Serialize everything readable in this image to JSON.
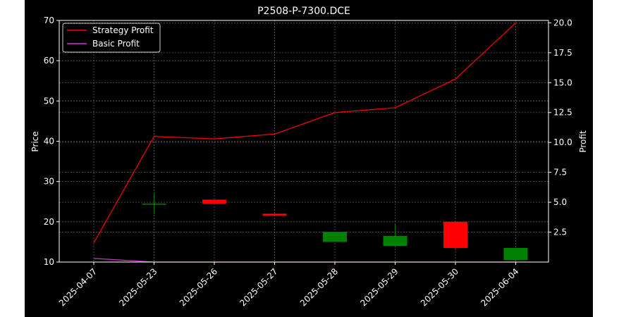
{
  "chart_data": {
    "type": "candlestick",
    "title": "P2508-P-7300.DCE",
    "categories": [
      "2025-04-07",
      "2025-05-23",
      "2025-05-26",
      "2025-05-27",
      "2025-05-28",
      "2025-05-29",
      "2025-05-30",
      "2025-06-04"
    ],
    "y_left": {
      "label": "Price",
      "lim": [
        10,
        70
      ],
      "ticks": [
        10,
        20,
        30,
        40,
        50,
        60,
        70
      ]
    },
    "y_right": {
      "label": "Profit",
      "lim": [
        0,
        20.2
      ],
      "ticks": [
        "2.5",
        "5.0",
        "7.5",
        "10.0",
        "12.5",
        "15.0",
        "17.5",
        "20.0"
      ],
      "tick_values": [
        2.5,
        5.0,
        7.5,
        10.0,
        12.5,
        15.0,
        17.5,
        20.0
      ]
    },
    "candles": [
      {
        "date": "2025-04-07",
        "open": null,
        "close": null,
        "high": null,
        "low": null
      },
      {
        "date": "2025-05-23",
        "open": 24.5,
        "close": 24.5,
        "high": 27.0,
        "low": 22.0
      },
      {
        "date": "2025-05-26",
        "open": 25.5,
        "close": 24.5,
        "high": 25.5,
        "low": 24.5
      },
      {
        "date": "2025-05-27",
        "open": 22.0,
        "close": 21.5,
        "high": 22.0,
        "low": 21.5
      },
      {
        "date": "2025-05-28",
        "open": 15.0,
        "close": 17.5,
        "high": 17.5,
        "low": 15.0
      },
      {
        "date": "2025-05-29",
        "open": 14.0,
        "close": 16.5,
        "high": 19.5,
        "low": 14.0
      },
      {
        "date": "2025-05-30",
        "open": 20.0,
        "close": 13.5,
        "high": 20.0,
        "low": 13.0
      },
      {
        "date": "2025-06-04",
        "open": 10.5,
        "close": 13.5,
        "high": 13.5,
        "low": 10.5
      }
    ],
    "series": [
      {
        "name": "Strategy Profit",
        "color": "#ff0000",
        "values": [
          1.6,
          10.5,
          10.3,
          10.7,
          12.5,
          12.9,
          15.3,
          20.0
        ]
      },
      {
        "name": "Basic Profit",
        "color": "#cc33cc",
        "values": [
          0.3,
          0.0,
          0.0,
          0.0,
          0.0,
          0.0,
          0.0,
          0.0
        ]
      }
    ],
    "colors": {
      "up": "#008000",
      "down": "#ff0000",
      "background": "#000000",
      "grid": "#808080"
    },
    "grid": true,
    "legend": "top-left"
  }
}
